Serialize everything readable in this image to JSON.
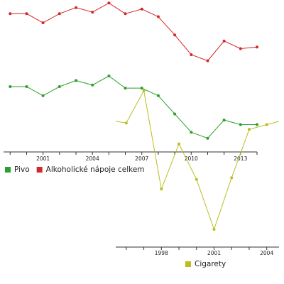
{
  "chart_data": [
    {
      "type": "line",
      "x": [
        1999,
        2000,
        2001,
        2002,
        2003,
        2004,
        2005,
        2006,
        2007,
        2008,
        2009,
        2010,
        2011,
        2012,
        2013,
        2014
      ],
      "x_ticks": [
        "2001",
        "2004",
        "2007",
        "2010",
        "2013"
      ],
      "xlim": [
        1998.6,
        2014
      ],
      "ylim": [
        0,
        100
      ],
      "grid": false,
      "legend_position": "bottom-left",
      "series": [
        {
          "name": "Pivo",
          "color": "#2ca02c",
          "values": [
            43,
            43,
            37,
            43,
            47,
            44,
            50,
            42,
            42,
            37,
            25,
            13,
            9,
            21,
            18,
            18
          ]
        },
        {
          "name": "Alkoholické nápoje celkem",
          "color": "#d62728",
          "values": [
            91,
            91,
            85,
            91,
            95,
            92,
            98,
            91,
            94,
            89,
            77,
            64,
            60,
            73,
            68,
            69
          ]
        }
      ]
    },
    {
      "type": "line",
      "x": [
        1995.4,
        1996,
        1997,
        1998,
        1999,
        2000,
        2001,
        2002,
        2003,
        2004,
        2004.7
      ],
      "x_ticks": [
        "1998",
        "2001",
        "2004"
      ],
      "xlim": [
        1995.4,
        2004.7
      ],
      "ylim": [
        0,
        100
      ],
      "grid": false,
      "legend_position": "bottom",
      "series": [
        {
          "name": "Cigarety",
          "color": "#bcbd22",
          "values": [
            78,
            77,
            97,
            36,
            64,
            42,
            11,
            43,
            73,
            76,
            78
          ]
        }
      ]
    }
  ]
}
